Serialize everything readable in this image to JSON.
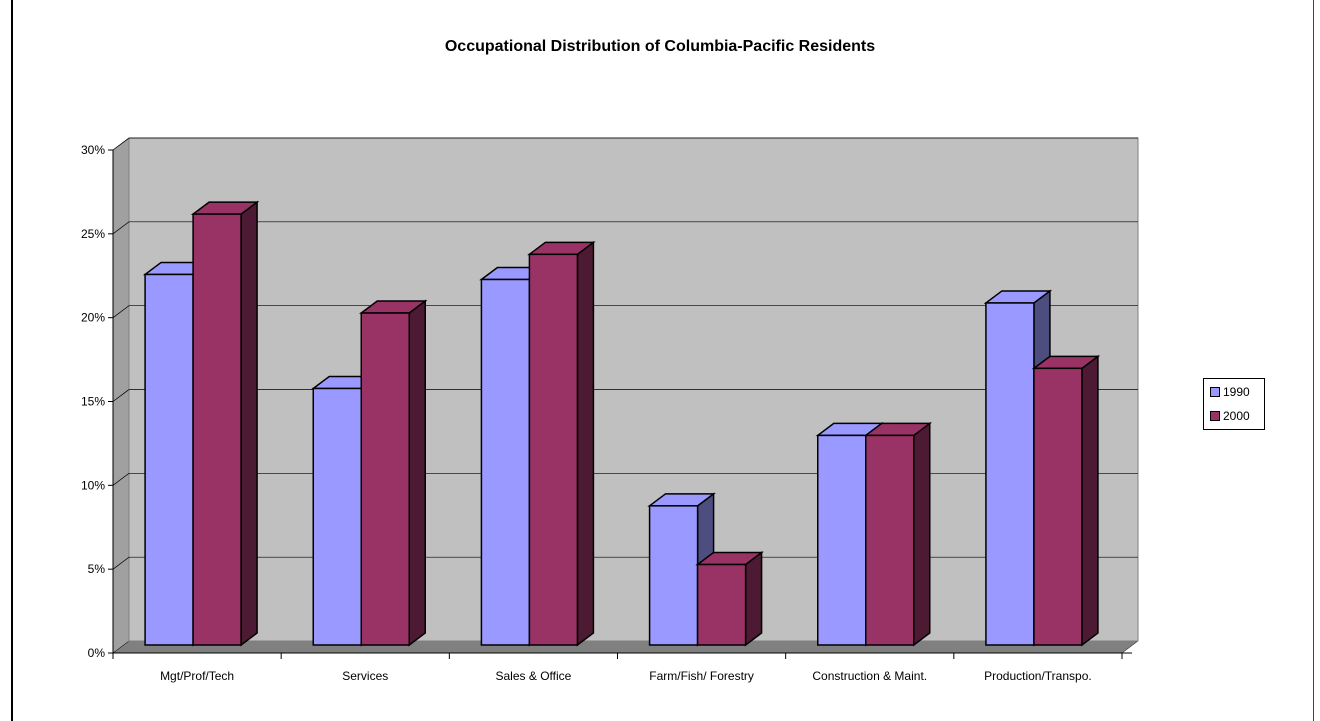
{
  "chart_data": {
    "type": "bar",
    "title": "Occupational Distribution of Columbia-Pacific Residents",
    "categories": [
      "Mgt/Prof/Tech",
      "Services",
      "Sales & Office",
      "Farm/Fish/ Forestry",
      "Construction & Maint.",
      "Production/Transpo."
    ],
    "series": [
      {
        "name": "1990",
        "values": [
          22.1,
          15.3,
          21.8,
          8.3,
          12.5,
          20.4
        ],
        "color": "#9999ff",
        "side_color": "#4d4d80"
      },
      {
        "name": "2000",
        "values": [
          25.7,
          19.8,
          23.3,
          4.8,
          12.5,
          16.5
        ],
        "color": "#993366",
        "side_color": "#4d1a33"
      }
    ],
    "ylim": [
      0,
      30
    ],
    "yticks": [
      "0%",
      "5%",
      "10%",
      "15%",
      "20%",
      "25%",
      "30%"
    ],
    "ytick_values": [
      0,
      5,
      10,
      15,
      20,
      25,
      30
    ],
    "grid": true,
    "legend_position": "right",
    "plot_background": "#c0c0c0"
  }
}
